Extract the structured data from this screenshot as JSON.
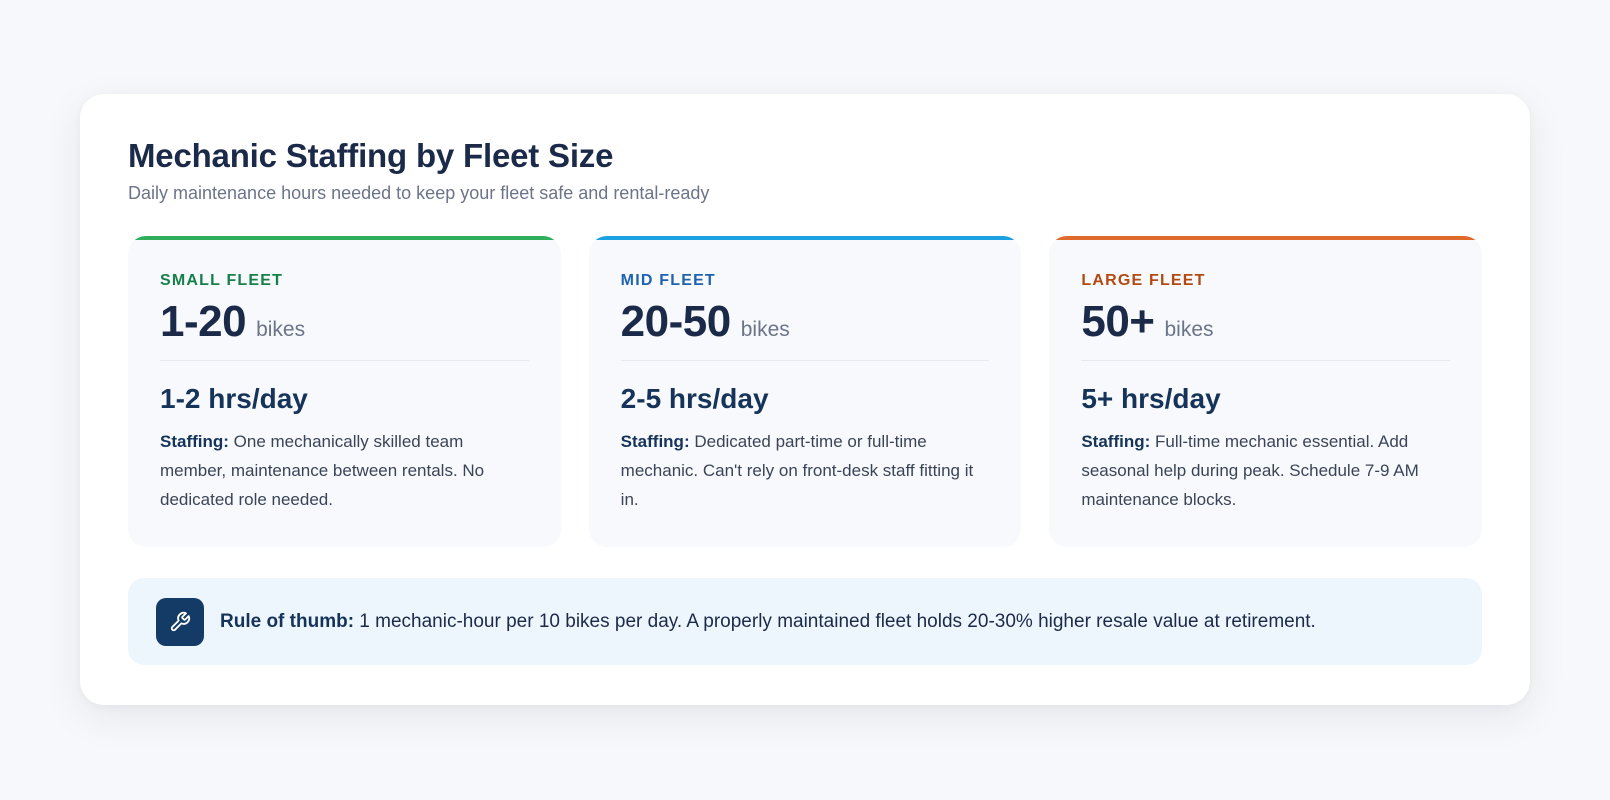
{
  "header": {
    "title": "Mechanic Staffing by Fleet Size",
    "subtitle": "Daily maintenance hours needed to keep your fleet safe and rental-ready"
  },
  "tiers": [
    {
      "label": "SMALL FLEET",
      "size": "1-20",
      "unit": "bikes",
      "hours": "1-2 hrs/day",
      "staffing_label": "Staffing:",
      "staffing_text": " One mechanically skilled team member, maintenance between rentals. No dedicated role needed.",
      "accent_color": "#2fae5b",
      "label_color": "#168049"
    },
    {
      "label": "MID FLEET",
      "size": "20-50",
      "unit": "bikes",
      "hours": "2-5 hrs/day",
      "staffing_label": "Staffing:",
      "staffing_text": " Dedicated part-time or full-time mechanic. Can't rely on front-desk staff fitting it in.",
      "accent_color": "#1ba0e2",
      "label_color": "#1e62b0"
    },
    {
      "label": "LARGE FLEET",
      "size": "50+",
      "unit": "bikes",
      "hours": "5+ hrs/day",
      "staffing_label": "Staffing:",
      "staffing_text": " Full-time mechanic essential. Add seasonal help during peak. Schedule 7-9 AM maintenance blocks.",
      "accent_color": "#e0692c",
      "label_color": "#b24a12"
    }
  ],
  "rule": {
    "icon": "wrench-icon",
    "label": "Rule of thumb:",
    "text": " 1 mechanic-hour per 10 bikes per day. A properly maintained fleet holds 20-30% higher resale value at retirement."
  }
}
